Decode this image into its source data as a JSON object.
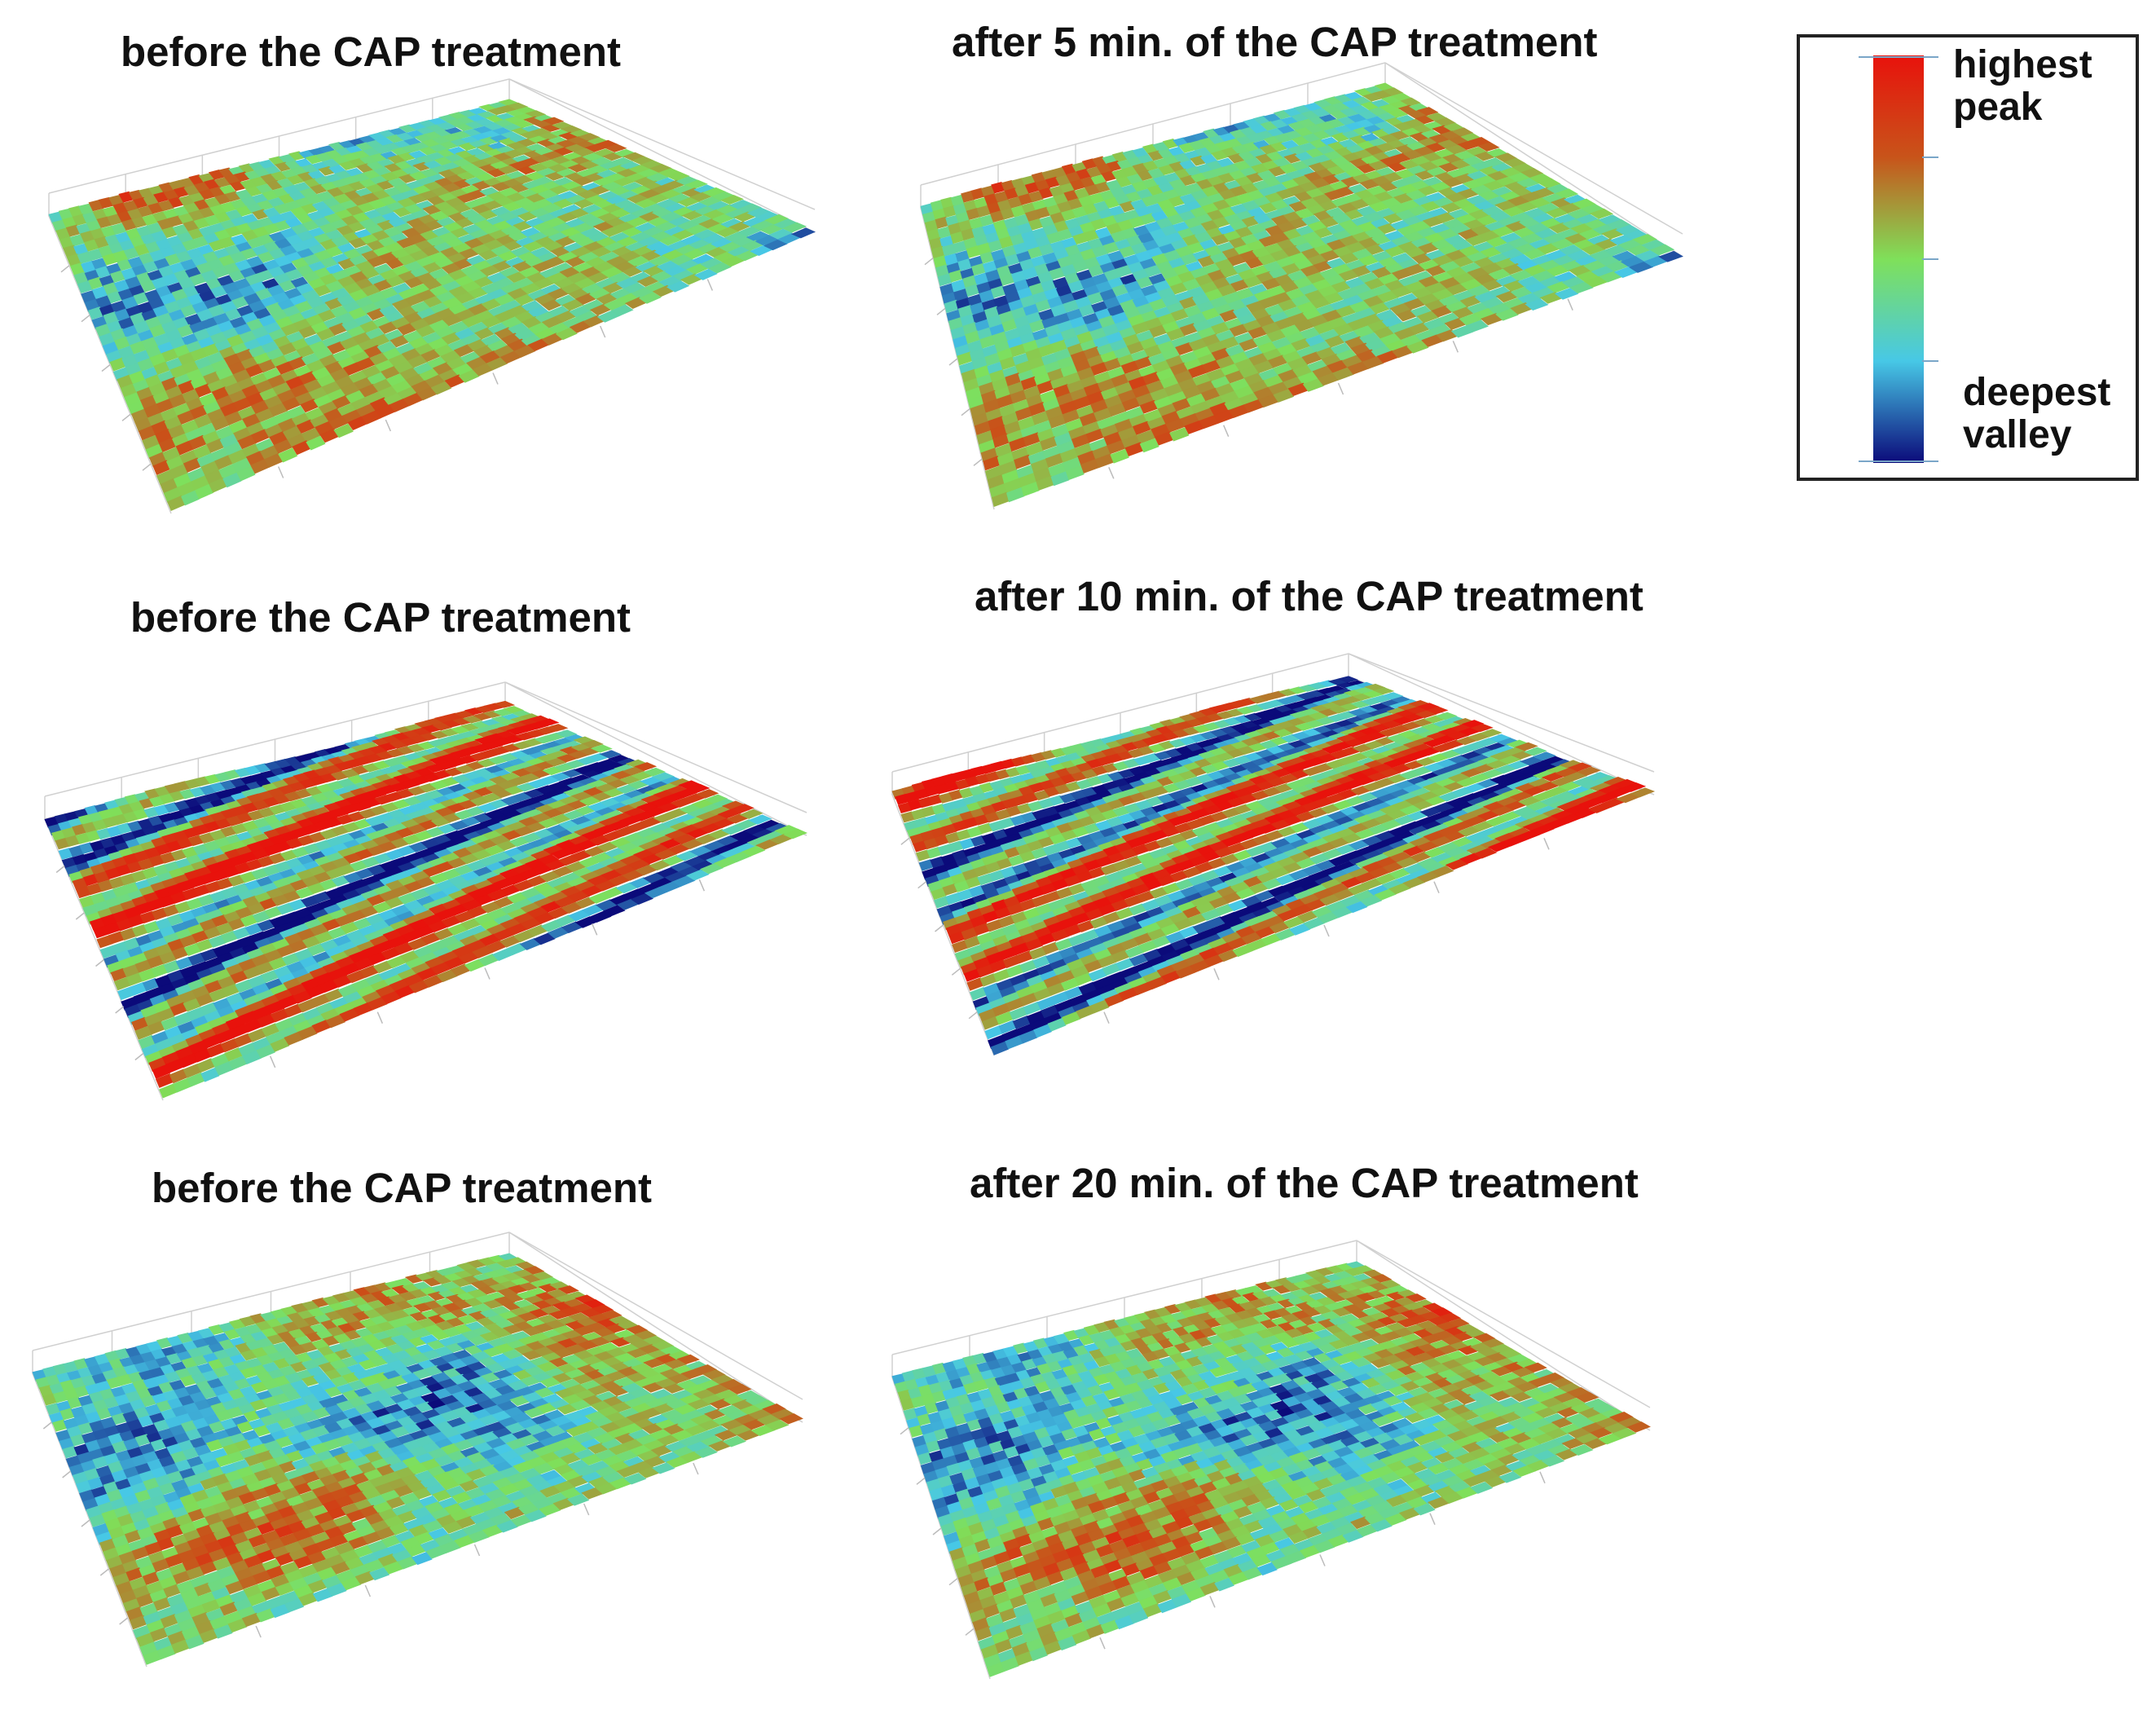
{
  "colorscale": {
    "high": "#e8120c",
    "upper": "#c8541a",
    "mid": "#7fe05a",
    "lower": "#47c8e6",
    "low": "#0b0a7a"
  },
  "panels": [
    {
      "title": "before the CAP treatment",
      "texture": "rough",
      "seed": 11
    },
    {
      "title": "after 5 min. of the CAP treatment",
      "texture": "rough",
      "seed": 11
    },
    {
      "title": "before the CAP treatment",
      "texture": "striped",
      "seed": 23
    },
    {
      "title": "after 10 min. of the CAP treatment",
      "texture": "striped",
      "seed": 37
    },
    {
      "title": "before the CAP treatment",
      "texture": "rough",
      "seed": 51
    },
    {
      "title": "after 20 min. of the CAP treatment",
      "texture": "rough",
      "seed": 51
    }
  ],
  "legend": {
    "top_label": "highest\npeak",
    "bottom_label": "deepest\nvalley"
  }
}
